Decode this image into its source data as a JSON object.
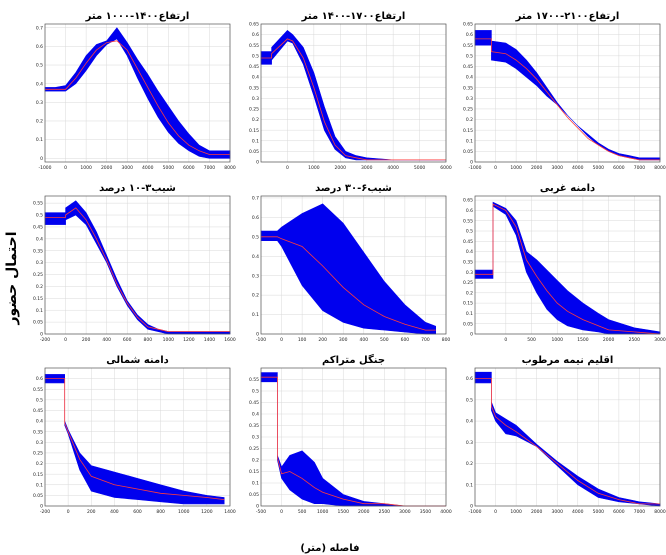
{
  "colors": {
    "band": "#0000ee",
    "mean": "#ff3b3b",
    "grid": "#d9d9d9",
    "frame": "#555555"
  },
  "figure": {
    "ylabel": "احتمال حضور",
    "xlabel": "فاصله (متر)"
  },
  "chart_data": [
    {
      "type": "area",
      "title": "ارتفاع۱۴۰۰-۱۰۰۰ متر",
      "xlim": [
        -1000,
        8000
      ],
      "ylim": [
        -0.02,
        0.72
      ],
      "xticks": [
        -1000,
        0,
        1000,
        2000,
        3000,
        4000,
        5000,
        6000,
        7000,
        8000
      ],
      "yticks": [
        0,
        0.1,
        0.2,
        0.3,
        0.4,
        0.5,
        0.6,
        0.7
      ],
      "grid": true,
      "x": [
        -1000,
        -500,
        0,
        500,
        1000,
        1500,
        2000,
        2500,
        3000,
        3500,
        4000,
        4500,
        5000,
        5500,
        6000,
        6500,
        7000,
        7500,
        8000
      ],
      "lower": [
        0.36,
        0.36,
        0.36,
        0.4,
        0.47,
        0.55,
        0.61,
        0.64,
        0.55,
        0.43,
        0.32,
        0.22,
        0.14,
        0.08,
        0.04,
        0.01,
        0.0,
        0.0,
        0.0
      ],
      "mean": [
        0.37,
        0.37,
        0.37,
        0.43,
        0.51,
        0.58,
        0.62,
        0.63,
        0.58,
        0.48,
        0.38,
        0.28,
        0.19,
        0.12,
        0.07,
        0.04,
        0.02,
        0.02,
        0.02
      ],
      "upper": [
        0.38,
        0.38,
        0.39,
        0.46,
        0.55,
        0.61,
        0.63,
        0.7,
        0.62,
        0.53,
        0.45,
        0.36,
        0.28,
        0.2,
        0.13,
        0.07,
        0.04,
        0.04,
        0.04
      ]
    },
    {
      "type": "area",
      "title": "ارتفاع۱۷۰۰-۱۴۰۰ متر",
      "xlim": [
        -1000,
        6000
      ],
      "ylim": [
        0.0,
        0.65
      ],
      "xticks": [
        0,
        1000,
        2000,
        3000,
        4000,
        5000,
        6000
      ],
      "yticks": [
        0.0,
        0.05,
        0.1,
        0.15,
        0.2,
        0.25,
        0.3,
        0.35,
        0.4,
        0.45,
        0.5,
        0.55,
        0.6,
        0.65
      ],
      "grid": true,
      "x": [
        -1000,
        -600,
        -600,
        0,
        200,
        600,
        1000,
        1400,
        1800,
        2200,
        2600,
        3000,
        4000,
        5000,
        6000
      ],
      "lower": [
        0.46,
        0.46,
        0.48,
        0.57,
        0.56,
        0.46,
        0.31,
        0.15,
        0.06,
        0.02,
        0.01,
        0.01,
        0.01,
        0.01,
        0.01
      ],
      "mean": [
        0.49,
        0.49,
        0.51,
        0.58,
        0.57,
        0.49,
        0.35,
        0.19,
        0.08,
        0.03,
        0.02,
        0.01,
        0.01,
        0.01,
        0.01
      ],
      "upper": [
        0.52,
        0.52,
        0.54,
        0.62,
        0.6,
        0.54,
        0.42,
        0.26,
        0.12,
        0.05,
        0.03,
        0.02,
        0.01,
        0.01,
        0.01
      ]
    },
    {
      "type": "area",
      "title": "ارتفاع۲۱۰۰-۱۷۰۰ متر",
      "xlim": [
        -1000,
        8000
      ],
      "ylim": [
        0.0,
        0.65
      ],
      "xticks": [
        -1000,
        0,
        1000,
        2000,
        3000,
        4000,
        5000,
        6000,
        7000,
        8000
      ],
      "yticks": [
        0.0,
        0.05,
        0.1,
        0.15,
        0.2,
        0.25,
        0.3,
        0.35,
        0.4,
        0.45,
        0.5,
        0.55,
        0.6,
        0.65
      ],
      "grid": true,
      "x": [
        -1000,
        -200,
        -200,
        500,
        1000,
        1500,
        2000,
        2500,
        3000,
        3500,
        4000,
        4500,
        5000,
        5500,
        6000,
        6500,
        7000,
        7500,
        8000
      ],
      "lower": [
        0.55,
        0.55,
        0.48,
        0.47,
        0.44,
        0.4,
        0.36,
        0.31,
        0.27,
        0.22,
        0.17,
        0.12,
        0.08,
        0.05,
        0.03,
        0.02,
        0.01,
        0.01,
        0.01
      ],
      "mean": [
        0.58,
        0.58,
        0.52,
        0.51,
        0.48,
        0.44,
        0.39,
        0.33,
        0.27,
        0.21,
        0.16,
        0.11,
        0.08,
        0.05,
        0.03,
        0.02,
        0.01,
        0.01,
        0.01
      ],
      "upper": [
        0.62,
        0.62,
        0.57,
        0.56,
        0.53,
        0.48,
        0.42,
        0.35,
        0.28,
        0.22,
        0.17,
        0.13,
        0.09,
        0.06,
        0.04,
        0.03,
        0.02,
        0.02,
        0.02
      ]
    },
    {
      "type": "area",
      "title": "شیب۳-۱۰ درصد",
      "xlim": [
        -200,
        1600
      ],
      "ylim": [
        0.0,
        0.58
      ],
      "xticks": [
        -200,
        0,
        200,
        400,
        600,
        800,
        1000,
        1200,
        1400,
        1600
      ],
      "yticks": [
        0.0,
        0.05,
        0.1,
        0.15,
        0.2,
        0.25,
        0.3,
        0.35,
        0.4,
        0.45,
        0.5,
        0.55
      ],
      "grid": true,
      "x": [
        -200,
        0,
        0,
        100,
        200,
        300,
        400,
        500,
        600,
        700,
        800,
        900,
        1000,
        1200,
        1400,
        1600
      ],
      "lower": [
        0.46,
        0.46,
        0.48,
        0.5,
        0.46,
        0.38,
        0.3,
        0.2,
        0.12,
        0.06,
        0.02,
        0.01,
        0.0,
        0.0,
        0.0,
        0.0
      ],
      "mean": [
        0.49,
        0.49,
        0.5,
        0.53,
        0.48,
        0.4,
        0.31,
        0.21,
        0.13,
        0.07,
        0.03,
        0.02,
        0.01,
        0.01,
        0.01,
        0.01
      ],
      "upper": [
        0.51,
        0.51,
        0.53,
        0.56,
        0.51,
        0.43,
        0.33,
        0.23,
        0.14,
        0.08,
        0.04,
        0.02,
        0.01,
        0.01,
        0.01,
        0.01
      ]
    },
    {
      "type": "area",
      "title": "شیب۶-۳۰ درصد",
      "xlim": [
        -100,
        800
      ],
      "ylim": [
        0.0,
        0.71
      ],
      "xticks": [
        -100,
        0,
        100,
        200,
        300,
        400,
        500,
        600,
        700,
        800
      ],
      "yticks": [
        0.0,
        0.1,
        0.2,
        0.3,
        0.4,
        0.5,
        0.6,
        0.7
      ],
      "grid": true,
      "x": [
        -100,
        -20,
        0,
        100,
        200,
        300,
        400,
        500,
        600,
        700,
        750
      ],
      "lower": [
        0.48,
        0.48,
        0.45,
        0.25,
        0.12,
        0.06,
        0.03,
        0.02,
        0.01,
        0.0,
        0.0
      ],
      "mean": [
        0.5,
        0.5,
        0.49,
        0.45,
        0.35,
        0.24,
        0.15,
        0.09,
        0.05,
        0.02,
        0.02
      ],
      "upper": [
        0.53,
        0.53,
        0.55,
        0.62,
        0.67,
        0.57,
        0.42,
        0.27,
        0.15,
        0.06,
        0.04
      ]
    },
    {
      "type": "area",
      "title": "دامنه غربی",
      "xlim": [
        -600,
        3000
      ],
      "ylim": [
        0.0,
        0.67
      ],
      "xticks": [
        0,
        500,
        1000,
        1500,
        2000,
        2500,
        3000
      ],
      "yticks": [
        0.0,
        0.05,
        0.1,
        0.15,
        0.2,
        0.25,
        0.3,
        0.35,
        0.4,
        0.45,
        0.5,
        0.55,
        0.6,
        0.65
      ],
      "grid": true,
      "x": [
        -600,
        -250,
        -250,
        0,
        200,
        400,
        600,
        800,
        1000,
        1200,
        1500,
        1800,
        2000,
        2500,
        3000
      ],
      "lower": [
        0.27,
        0.27,
        0.62,
        0.58,
        0.48,
        0.3,
        0.2,
        0.12,
        0.07,
        0.04,
        0.02,
        0.01,
        0.0,
        0.0,
        0.0
      ],
      "mean": [
        0.29,
        0.29,
        0.63,
        0.6,
        0.52,
        0.36,
        0.28,
        0.21,
        0.15,
        0.11,
        0.07,
        0.04,
        0.02,
        0.01,
        0.0
      ],
      "upper": [
        0.31,
        0.31,
        0.64,
        0.61,
        0.55,
        0.4,
        0.36,
        0.31,
        0.26,
        0.21,
        0.15,
        0.1,
        0.07,
        0.03,
        0.01
      ]
    },
    {
      "type": "area",
      "title": "دامنه شمالی",
      "xlim": [
        -200,
        1400
      ],
      "ylim": [
        0.0,
        0.65
      ],
      "xticks": [
        -200,
        0,
        200,
        400,
        600,
        800,
        1000,
        1200,
        1400
      ],
      "yticks": [
        0.0,
        0.05,
        0.1,
        0.15,
        0.2,
        0.25,
        0.3,
        0.35,
        0.4,
        0.45,
        0.5,
        0.55,
        0.6
      ],
      "grid": true,
      "x": [
        -200,
        -30,
        -30,
        0,
        100,
        200,
        400,
        600,
        800,
        1000,
        1200,
        1350
      ],
      "lower": [
        0.58,
        0.58,
        0.38,
        0.34,
        0.17,
        0.07,
        0.04,
        0.03,
        0.02,
        0.01,
        0.01,
        0.01
      ],
      "mean": [
        0.6,
        0.6,
        0.39,
        0.35,
        0.22,
        0.14,
        0.1,
        0.08,
        0.06,
        0.05,
        0.04,
        0.03
      ],
      "upper": [
        0.62,
        0.62,
        0.4,
        0.36,
        0.25,
        0.19,
        0.16,
        0.13,
        0.1,
        0.07,
        0.05,
        0.04
      ]
    },
    {
      "type": "area",
      "title": "جنگل متراکم",
      "xlim": [
        -500,
        4000
      ],
      "ylim": [
        0.0,
        0.6
      ],
      "xticks": [
        -500,
        0,
        500,
        1000,
        1500,
        2000,
        2500,
        3000,
        3500,
        4000
      ],
      "yticks": [
        0.0,
        0.05,
        0.1,
        0.15,
        0.2,
        0.25,
        0.3,
        0.35,
        0.4,
        0.45,
        0.5,
        0.55
      ],
      "grid": true,
      "x": [
        -500,
        -100,
        -100,
        0,
        200,
        500,
        800,
        1000,
        1500,
        2000,
        2500,
        3000,
        3500,
        4000
      ],
      "lower": [
        0.54,
        0.54,
        0.2,
        0.12,
        0.07,
        0.03,
        0.01,
        0.01,
        0.0,
        0.0,
        0.0,
        0.0,
        0.0,
        0.0
      ],
      "mean": [
        0.56,
        0.56,
        0.21,
        0.14,
        0.15,
        0.12,
        0.08,
        0.06,
        0.03,
        0.01,
        0.01,
        0.0,
        0.0,
        0.0
      ],
      "upper": [
        0.58,
        0.58,
        0.22,
        0.17,
        0.22,
        0.24,
        0.19,
        0.12,
        0.05,
        0.02,
        0.01,
        0.0,
        0.0,
        0.0
      ]
    },
    {
      "type": "area",
      "title": "اقلیم نیمه مرطوب",
      "xlim": [
        -1000,
        8000
      ],
      "ylim": [
        0.0,
        0.65
      ],
      "xticks": [
        -1000,
        0,
        1000,
        2000,
        3000,
        4000,
        5000,
        6000,
        7000,
        8000
      ],
      "yticks": [
        0.0,
        0.1,
        0.2,
        0.3,
        0.4,
        0.5,
        0.6
      ],
      "grid": true,
      "x": [
        -1000,
        -200,
        -200,
        0,
        500,
        1000,
        2000,
        3000,
        4000,
        5000,
        6000,
        7000,
        8000
      ],
      "lower": [
        0.58,
        0.58,
        0.45,
        0.4,
        0.34,
        0.33,
        0.28,
        0.19,
        0.1,
        0.04,
        0.02,
        0.01,
        0.0
      ],
      "mean": [
        0.6,
        0.6,
        0.47,
        0.42,
        0.38,
        0.35,
        0.28,
        0.2,
        0.12,
        0.06,
        0.03,
        0.01,
        0.01
      ],
      "upper": [
        0.63,
        0.63,
        0.49,
        0.44,
        0.41,
        0.38,
        0.29,
        0.21,
        0.14,
        0.08,
        0.04,
        0.02,
        0.01
      ]
    }
  ]
}
